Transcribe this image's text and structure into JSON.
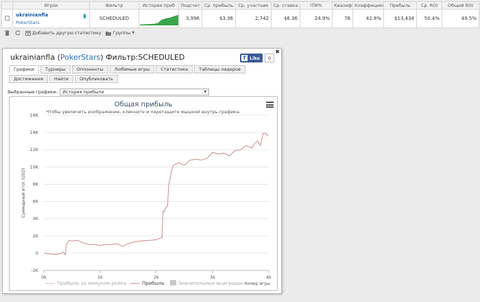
{
  "stats_table": {
    "headers": [
      "",
      "Игрок",
      "Фильтр",
      "История приб",
      "Подсчет",
      "Ср. прибыль",
      "Ср. участник",
      "Ср. ставка",
      "ITM%",
      "Квалиф",
      "Коэффициен",
      "Прибыль",
      "Ср. ROI",
      "Общий ROI"
    ],
    "row": {
      "player": "ukrainianfla",
      "room": "PokerStars",
      "filter": "SCHEDULED",
      "count": "3,996",
      "avg_profit": "$3.36",
      "avg_entrants": "2,742",
      "avg_stake": "$6.36",
      "itm": "24.9%",
      "qualif": "78",
      "coef": "42.8%",
      "profit": "$13,434",
      "avg_roi": "50.4%",
      "total_roi": "49.5%"
    }
  },
  "toolbar": {
    "add_stat_label": "Добавить другую статистику",
    "groups_label": "Группы"
  },
  "panel": {
    "title_player": "ukrainianfla",
    "title_room": "PokerStars",
    "title_filter": "Фильтр:SCHEDULED",
    "fb_like_label": "Like",
    "fb_count": "0",
    "tabs": [
      "Графики",
      "Турниры",
      "Оппоненты",
      "Любимые игры",
      "Статистика",
      "Таблицы лидеров",
      "Достижения",
      "Найти",
      "Опубликовать"
    ],
    "active_tab": 0,
    "selector_label": "Выбранные графики:",
    "selector_value": "История прибыли"
  },
  "chart_data": {
    "type": "line",
    "title": "Общая прибыль",
    "subtitle": "Чтобы увеличить изображение, кликните и перетащите мышкой внутрь графика.",
    "xlabel": "Номер игры",
    "ylabel": "Суммарный итог (USD)",
    "xlim": [
      0,
      4000
    ],
    "ylim": [
      -2000,
      16000
    ],
    "x_ticks": [
      "0k",
      "1k",
      "2k",
      "3k",
      "4k"
    ],
    "y_ticks": [
      "-2K",
      "0",
      "2K",
      "4K",
      "6K",
      "8K",
      "10K",
      "12K",
      "14K",
      "16K"
    ],
    "grid": true,
    "legend_position": "bottom",
    "legend": [
      "Прибыль за минусом рейка",
      "Прибыль",
      "Значительные выигрыши"
    ],
    "colors": {
      "profit": "#c98a8a",
      "rake_line": "#e6b6b6",
      "big_wins": "#c8c8c8"
    },
    "series": [
      {
        "name": "Прибыль",
        "x": [
          0,
          100,
          200,
          300,
          350,
          380,
          400,
          450,
          500,
          600,
          700,
          800,
          900,
          1000,
          1100,
          1200,
          1300,
          1400,
          1500,
          1600,
          1700,
          1800,
          1900,
          2000,
          2050,
          2100,
          2120,
          2140,
          2160,
          2200,
          2220,
          2240,
          2260,
          2300,
          2400,
          2500,
          2600,
          2700,
          2800,
          2900,
          3000,
          3100,
          3200,
          3300,
          3400,
          3500,
          3600,
          3700,
          3750,
          3800,
          3850,
          3900,
          3950,
          3990
        ],
        "y": [
          0,
          -80,
          -150,
          -50,
          100,
          -200,
          1000,
          1500,
          1400,
          1500,
          1200,
          1000,
          1000,
          900,
          1000,
          1000,
          1100,
          800,
          1100,
          1300,
          1400,
          1450,
          1500,
          1550,
          1700,
          1800,
          4900,
          4800,
          5200,
          5500,
          7900,
          8500,
          9300,
          10200,
          10500,
          10200,
          10800,
          10900,
          10800,
          11000,
          11700,
          11500,
          11600,
          11300,
          11900,
          12000,
          12500,
          12200,
          12800,
          13000,
          12500,
          13900,
          13900,
          13600
        ]
      }
    ]
  }
}
